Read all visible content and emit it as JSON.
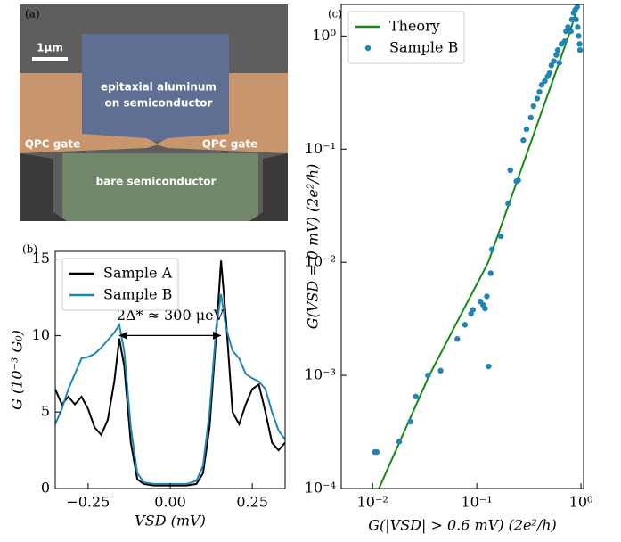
{
  "panel_a": {
    "panel_label": "(a)",
    "scale_bar": "1μm",
    "region_top": [
      "epitaxial aluminum",
      "on semiconductor"
    ],
    "gate_left": "QPC gate",
    "gate_right": "QPC gate",
    "region_bottom": "bare semiconductor"
  },
  "chart_data": [
    {
      "type": "line",
      "panel_label": "(b)",
      "x_label": "VSD (mV)",
      "y_label": "G (10⁻³ G₀)",
      "x": [
        -0.35,
        -0.33,
        -0.31,
        -0.29,
        -0.27,
        -0.25,
        -0.23,
        -0.21,
        -0.19,
        -0.17,
        -0.155,
        -0.14,
        -0.12,
        -0.1,
        -0.08,
        -0.05,
        0,
        0.05,
        0.08,
        0.1,
        0.12,
        0.14,
        0.155,
        0.17,
        0.19,
        0.21,
        0.23,
        0.25,
        0.27,
        0.29,
        0.31,
        0.33,
        0.35
      ],
      "series": [
        {
          "name": "Sample A",
          "color": "#000000",
          "values": [
            6.5,
            5.5,
            6.0,
            5.5,
            6.0,
            5.2,
            4.0,
            3.5,
            4.5,
            7.0,
            9.8,
            8.0,
            3.0,
            0.6,
            0.3,
            0.2,
            0.2,
            0.2,
            0.3,
            1.0,
            4.0,
            10.0,
            14.9,
            11.0,
            5.0,
            4.2,
            5.5,
            6.5,
            6.8,
            5.0,
            3.0,
            2.5,
            3.0
          ]
        },
        {
          "name": "Sample B",
          "color": "#1f86b4",
          "values": [
            4.2,
            5.2,
            6.5,
            7.5,
            8.5,
            8.6,
            8.8,
            9.2,
            9.7,
            10.2,
            10.7,
            9.0,
            4.0,
            1.0,
            0.4,
            0.3,
            0.3,
            0.3,
            0.5,
            1.5,
            5.0,
            10.5,
            12.7,
            10.5,
            9.0,
            8.5,
            7.5,
            7.2,
            7.0,
            6.5,
            5.0,
            3.8,
            3.2
          ]
        }
      ],
      "annotation": {
        "text": "2Δ* ≈ 300 μeV",
        "x": [
          -0.155,
          0.155
        ],
        "y": 10
      },
      "xlim": [
        -0.35,
        0.35
      ],
      "ylim": [
        0,
        15.5
      ],
      "xticks": [
        {
          "value": -0.25,
          "label": "−0.25"
        },
        {
          "value": 0,
          "label": "0.00"
        },
        {
          "value": 0.25,
          "label": "0.25"
        }
      ],
      "yticks": [
        0,
        5,
        10,
        15
      ],
      "legend": "upper left"
    },
    {
      "type": "scatter",
      "panel_label": "(c)",
      "x_label": "G(|VSD| > 0.6 mV) (2e²/h)",
      "y_label": "G(VSD = 0 mV) (2e²/h)",
      "xscale": "log",
      "yscale": "log",
      "series": [
        {
          "name": "Theory",
          "kind": "line",
          "color": "#138a13",
          "x": [
            0.0115,
            0.035,
            0.129,
            0.313,
            0.76,
            0.95
          ],
          "values": [
            0.0001,
            0.001,
            0.01,
            0.1,
            1,
            1.9
          ]
        },
        {
          "name": "Sample B",
          "kind": "scatter",
          "color": "#1f86b4",
          "x": [
            0.0105,
            0.011,
            0.018,
            0.023,
            0.026,
            0.034,
            0.045,
            0.065,
            0.077,
            0.088,
            0.092,
            0.108,
            0.115,
            0.12,
            0.125,
            0.13,
            0.136,
            0.14,
            0.17,
            0.2,
            0.21,
            0.24,
            0.25,
            0.28,
            0.3,
            0.33,
            0.35,
            0.38,
            0.4,
            0.42,
            0.45,
            0.48,
            0.5,
            0.52,
            0.55,
            0.58,
            0.6,
            0.62,
            0.65,
            0.7,
            0.72,
            0.75,
            0.8,
            0.82,
            0.85,
            0.88,
            0.9,
            0.92,
            0.95,
            0.97,
            0.98,
            0.93
          ],
          "values": [
            0.00021,
            0.00021,
            0.00026,
            0.00039,
            0.00065,
            0.001,
            0.0011,
            0.0021,
            0.0028,
            0.0035,
            0.0038,
            0.0045,
            0.0042,
            0.0039,
            0.005,
            0.0012,
            0.008,
            0.013,
            0.017,
            0.033,
            0.065,
            0.052,
            0.053,
            0.12,
            0.15,
            0.19,
            0.24,
            0.28,
            0.32,
            0.37,
            0.4,
            0.44,
            0.47,
            0.55,
            0.6,
            0.68,
            0.75,
            0.58,
            0.85,
            0.9,
            1.1,
            1.2,
            1.1,
            1.4,
            1.6,
            1.7,
            1.4,
            1.8,
            1.0,
            0.85,
            0.75,
            1.2
          ]
        }
      ],
      "xlim": [
        0.005,
        1.06
      ],
      "ylim": [
        0.0001,
        1.9
      ],
      "xticks": [
        {
          "value": 0.01,
          "label": "10⁻²"
        },
        {
          "value": 0.1,
          "label": "10⁻¹"
        },
        {
          "value": 1,
          "label": "10⁰"
        }
      ],
      "yticks": [
        {
          "value": 0.0001,
          "label": "10⁻⁴"
        },
        {
          "value": 0.001,
          "label": "10⁻³"
        },
        {
          "value": 0.01,
          "label": "10⁻²"
        },
        {
          "value": 0.1,
          "label": "10⁻¹"
        },
        {
          "value": 1,
          "label": "10⁰"
        }
      ],
      "legend": "upper left"
    }
  ]
}
